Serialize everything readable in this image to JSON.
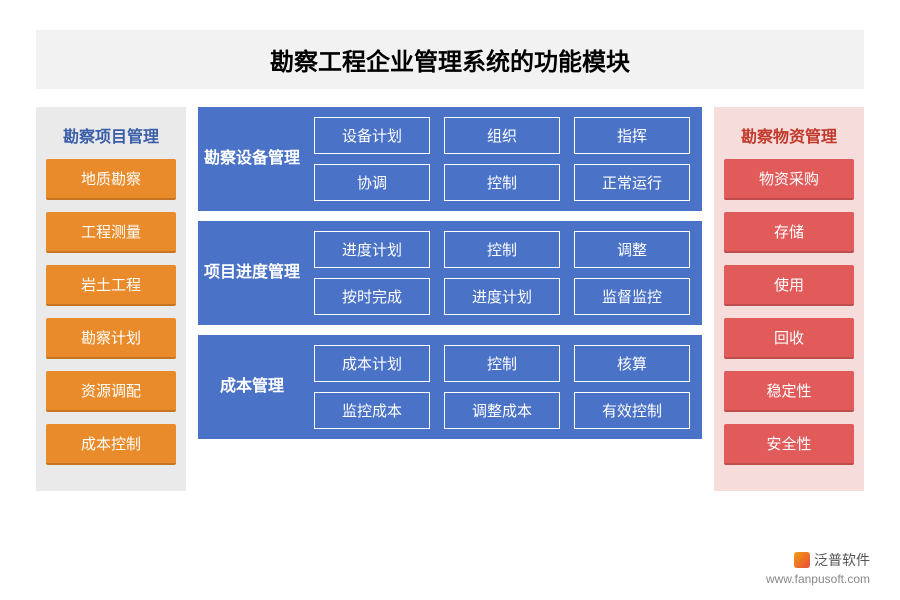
{
  "title": "勘察工程企业管理系统的功能模块",
  "colors": {
    "title_bg": "#f2f2f2",
    "left_bg": "#eaeaea",
    "right_bg": "#f7dcdc",
    "center_bg": "#4a72c6",
    "orange": "#e98b2a",
    "red": "#e15b5b",
    "cell_border": "#ffffff",
    "left_header_color": "#3a5ea8",
    "right_header_color": "#c0392b"
  },
  "left": {
    "header": "勘察项目管理",
    "items": [
      "地质勘察",
      "工程测量",
      "岩土工程",
      "勘察计划",
      "资源调配",
      "成本控制"
    ]
  },
  "right": {
    "header": "勘察物资管理",
    "items": [
      "物资采购",
      "存储",
      "使用",
      "回收",
      "稳定性",
      "安全性"
    ]
  },
  "center": [
    {
      "label": "勘察设备管理",
      "cells": [
        "设备计划",
        "组织",
        "指挥",
        "协调",
        "控制",
        "正常运行"
      ]
    },
    {
      "label": "项目进度管理",
      "cells": [
        "进度计划",
        "控制",
        "调整",
        "按时完成",
        "进度计划",
        "监督监控"
      ]
    },
    {
      "label": "成本管理",
      "cells": [
        "成本计划",
        "控制",
        "核算",
        "监控成本",
        "调整成本",
        "有效控制"
      ]
    }
  ],
  "footer": {
    "brand": "泛普软件",
    "url": "www.fanpusoft.com"
  }
}
